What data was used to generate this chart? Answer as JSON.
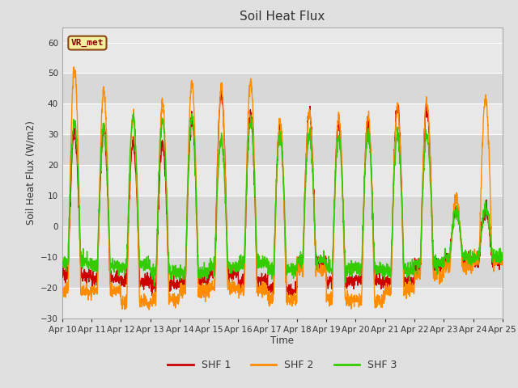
{
  "title": "Soil Heat Flux",
  "ylabel": "Soil Heat Flux (W/m2)",
  "xlabel": "Time",
  "xlim_start": 0,
  "xlim_end": 15,
  "ylim": [
    -30,
    65
  ],
  "yticks": [
    -30,
    -20,
    -10,
    0,
    10,
    20,
    30,
    40,
    50,
    60
  ],
  "xtick_labels": [
    "Apr 10",
    "Apr 11",
    "Apr 12",
    "Apr 13",
    "Apr 14",
    "Apr 15",
    "Apr 16",
    "Apr 17",
    "Apr 18",
    "Apr 19",
    "Apr 20",
    "Apr 21",
    "Apr 22",
    "Apr 23",
    "Apr 24",
    "Apr 25"
  ],
  "colors": {
    "SHF1": "#cc0000",
    "SHF2": "#ff8c00",
    "SHF3": "#33cc00"
  },
  "legend_label": "VR_met",
  "fig_bg_color": "#e0e0e0",
  "plot_bg_color": "#e8e8e8",
  "linewidth": 1.0,
  "band_colors": [
    "#e8e8e8",
    "#d8d8d8"
  ],
  "band_ranges": [
    [
      60,
      50
    ],
    [
      50,
      40
    ],
    [
      40,
      30
    ],
    [
      30,
      20
    ],
    [
      20,
      10
    ],
    [
      10,
      0
    ],
    [
      0,
      -10
    ],
    [
      -10,
      -20
    ],
    [
      -20,
      -30
    ]
  ],
  "band_fill": [
    "#e8e8e8",
    "#d8d8d8",
    "#e8e8e8",
    "#d8d8d8",
    "#e8e8e8",
    "#d8d8d8",
    "#e8e8e8",
    "#d8d8d8",
    "#e8e8e8"
  ]
}
